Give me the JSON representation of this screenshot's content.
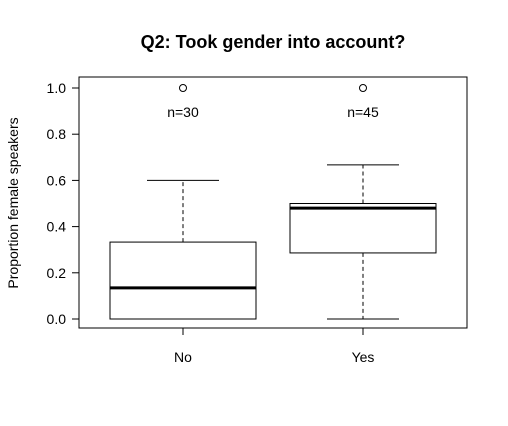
{
  "chart_data": {
    "type": "boxplot",
    "title": "Q2: Took gender into account?",
    "xlabel": "",
    "ylabel": "Proportion female speakers",
    "ylim": [
      0.0,
      1.0
    ],
    "yticks": [
      "0.0",
      "0.2",
      "0.4",
      "0.6",
      "0.8",
      "1.0"
    ],
    "grid": false,
    "categories": [
      "No",
      "Yes"
    ],
    "boxes": [
      {
        "category": "No",
        "whisker_low": 0.0,
        "q1": 0.0,
        "median": 0.135,
        "q3": 0.333,
        "whisker_high": 0.6,
        "outliers": [
          1.0
        ],
        "annotation": "n=30"
      },
      {
        "category": "Yes",
        "whisker_low": 0.0,
        "q1": 0.286,
        "median": 0.48,
        "q3": 0.5,
        "whisker_high": 0.667,
        "outliers": [
          1.0
        ],
        "annotation": "n=45"
      }
    ]
  }
}
